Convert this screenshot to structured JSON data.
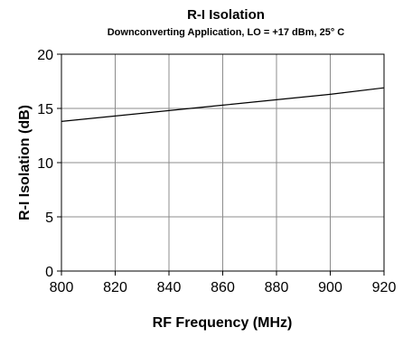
{
  "chart_data": {
    "type": "line",
    "title": "R-I Isolation",
    "subtitle": "Downconverting Application, LO = +17 dBm, 25° C",
    "xlabel": "RF Frequency (MHz)",
    "ylabel": "R-I Isolation (dB)",
    "xlim": [
      800,
      920
    ],
    "ylim": [
      0,
      20
    ],
    "x_ticks": [
      800,
      820,
      840,
      860,
      880,
      900,
      920
    ],
    "y_ticks": [
      0,
      5,
      10,
      15,
      20
    ],
    "grid": true,
    "series": [
      {
        "color": "#000000",
        "x": [
          800,
          820,
          840,
          860,
          880,
          900,
          920
        ],
        "y": [
          13.8,
          14.3,
          14.8,
          15.3,
          15.8,
          16.3,
          16.9
        ]
      }
    ]
  }
}
